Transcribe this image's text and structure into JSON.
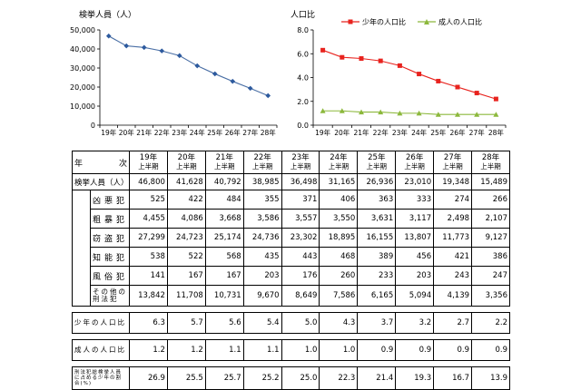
{
  "chart_data": [
    {
      "type": "line",
      "title": "検挙人員（人）",
      "x": [
        "19年",
        "20年",
        "21年",
        "22年",
        "23年",
        "24年",
        "25年",
        "26年",
        "27年",
        "28年"
      ],
      "series": [
        {
          "values": [
            46800,
            41628,
            40792,
            38985,
            36498,
            31165,
            26936,
            23010,
            19348,
            15489
          ]
        }
      ],
      "yticks": [
        "0",
        "10,000",
        "20,000",
        "30,000",
        "40,000",
        "50,000"
      ],
      "ylim": [
        0,
        50000
      ],
      "grid": false,
      "colors": {
        "line": "#4a6fa5",
        "marker": "#2d5a9e"
      }
    },
    {
      "type": "line",
      "title": "人口比",
      "x": [
        "19年",
        "20年",
        "21年",
        "22年",
        "23年",
        "24年",
        "25年",
        "26年",
        "27年",
        "28年"
      ],
      "series": [
        {
          "name": "少年の人口比",
          "values": [
            6.3,
            5.7,
            5.6,
            5.4,
            5.0,
            4.3,
            3.7,
            3.2,
            2.7,
            2.2
          ]
        },
        {
          "name": "成人の人口比",
          "values": [
            1.2,
            1.2,
            1.1,
            1.1,
            1.0,
            1.0,
            0.9,
            0.9,
            0.9,
            0.9
          ]
        }
      ],
      "yticks": [
        "0.0",
        "2.0",
        "4.0",
        "6.0",
        "8.0"
      ],
      "ylim": [
        0,
        8
      ],
      "grid": false,
      "legend": "top",
      "colors": {
        "juvenile": "#e8231e",
        "adult": "#8cb83c"
      }
    },
    {
      "type": "table",
      "corner": {
        "left": "年",
        "right": "次"
      },
      "columns": [
        {
          "year": "19年",
          "sub": "上半期"
        },
        {
          "year": "20年",
          "sub": "上半期"
        },
        {
          "year": "21年",
          "sub": "上半期"
        },
        {
          "year": "22年",
          "sub": "上半期"
        },
        {
          "year": "23年",
          "sub": "上半期"
        },
        {
          "year": "24年",
          "sub": "上半期"
        },
        {
          "year": "25年",
          "sub": "上半期"
        },
        {
          "year": "26年",
          "sub": "上半期"
        },
        {
          "year": "27年",
          "sub": "上半期"
        },
        {
          "year": "28年",
          "sub": "上半期"
        }
      ],
      "rows": {
        "total": {
          "label": "検挙人員（人）",
          "values": [
            "46,800",
            "41,628",
            "40,792",
            "38,985",
            "36,498",
            "31,165",
            "26,936",
            "23,010",
            "19,348",
            "15,489"
          ]
        },
        "sub": [
          {
            "label": "凶悪犯",
            "values": [
              "525",
              "422",
              "484",
              "355",
              "371",
              "406",
              "363",
              "333",
              "274",
              "266"
            ]
          },
          {
            "label": "粗暴犯",
            "values": [
              "4,455",
              "4,086",
              "3,668",
              "3,586",
              "3,557",
              "3,550",
              "3,631",
              "3,117",
              "2,498",
              "2,107"
            ]
          },
          {
            "label": "窃盗犯",
            "values": [
              "27,299",
              "24,723",
              "25,174",
              "24,736",
              "23,302",
              "18,895",
              "16,155",
              "13,807",
              "11,773",
              "9,127"
            ]
          },
          {
            "label": "知能犯",
            "values": [
              "538",
              "522",
              "568",
              "435",
              "443",
              "468",
              "389",
              "456",
              "421",
              "386"
            ]
          },
          {
            "label": "風俗犯",
            "values": [
              "141",
              "167",
              "167",
              "203",
              "176",
              "260",
              "233",
              "203",
              "243",
              "247"
            ]
          },
          {
            "label": "その他の刑法犯",
            "values": [
              "13,842",
              "11,708",
              "10,731",
              "9,670",
              "8,649",
              "7,586",
              "6,165",
              "5,094",
              "4,139",
              "3,356"
            ]
          }
        ],
        "juvenile": {
          "label": "少年の人口比",
          "values": [
            "6.3",
            "5.7",
            "5.6",
            "5.4",
            "5.0",
            "4.3",
            "3.7",
            "3.2",
            "2.7",
            "2.2"
          ]
        },
        "adult": {
          "label": "成人の人口比",
          "values": [
            "1.2",
            "1.2",
            "1.1",
            "1.1",
            "1.0",
            "1.0",
            "0.9",
            "0.9",
            "0.9",
            "0.9"
          ]
        },
        "share": {
          "label": "刑法犯総検挙人員に占める少年の割合(%)",
          "values": [
            "26.9",
            "25.5",
            "25.7",
            "25.2",
            "25.0",
            "22.3",
            "21.4",
            "19.3",
            "16.7",
            "13.9"
          ]
        }
      }
    }
  ]
}
